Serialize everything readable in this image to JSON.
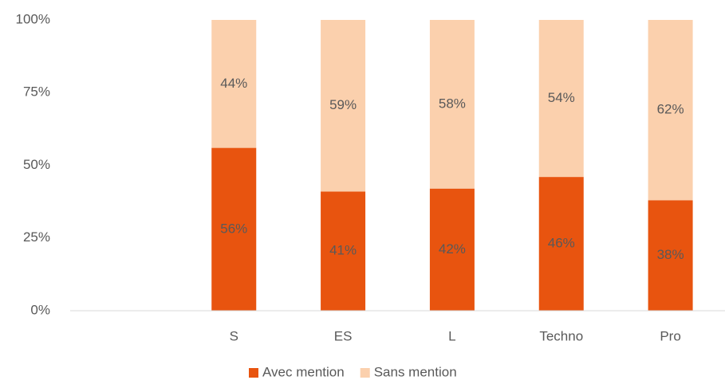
{
  "chart_data": {
    "type": "stacked_bar",
    "categories": [
      null,
      "S",
      "ES",
      "L",
      "Techno",
      "Pro"
    ],
    "series": [
      {
        "name": "Avec mention",
        "color": "#e8540f",
        "values": [
          null,
          56,
          41,
          42,
          46,
          38
        ],
        "value_labels": [
          null,
          "56%",
          "41%",
          "42%",
          "46%",
          "38%"
        ]
      },
      {
        "name": "Sans mention",
        "color": "#fbd0ad",
        "values": [
          null,
          44,
          59,
          58,
          54,
          62
        ],
        "value_labels": [
          null,
          "44%",
          "59%",
          "58%",
          "54%",
          "62%"
        ]
      }
    ],
    "ylim": [
      0,
      100
    ],
    "yticks": [
      {
        "value": 0,
        "label": "0%"
      },
      {
        "value": 25,
        "label": "25%"
      },
      {
        "value": 50,
        "label": "50%"
      },
      {
        "value": 75,
        "label": "75%"
      },
      {
        "value": 100,
        "label": "100%"
      }
    ],
    "legend": "bottom"
  }
}
